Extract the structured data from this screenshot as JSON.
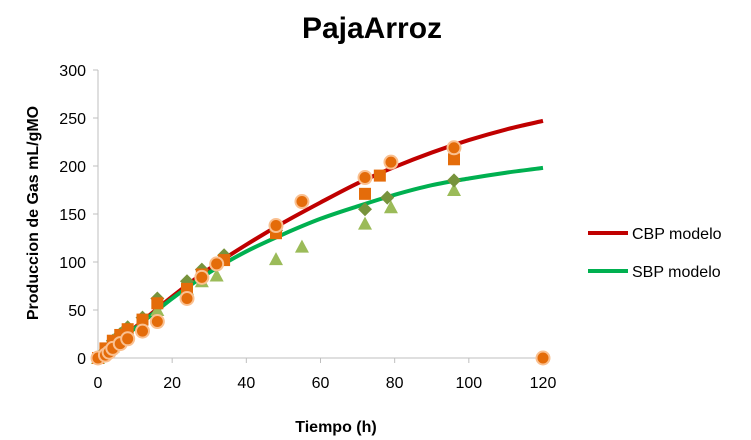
{
  "chart_data": {
    "type": "scatter",
    "title": "PajaArroz",
    "xlabel": "Tiempo (h)",
    "ylabel": "Produccion de Gas mL/gMO",
    "xlim": [
      0,
      120
    ],
    "ylim": [
      0,
      300
    ],
    "xticks": [
      0,
      20,
      40,
      60,
      80,
      100,
      120
    ],
    "yticks": [
      0,
      50,
      100,
      150,
      200,
      250,
      300
    ],
    "grid": false,
    "legend_position": "right",
    "series": [
      {
        "name": "CBP modelo",
        "kind": "line",
        "color": "#c00000",
        "x": [
          0,
          10,
          20,
          30,
          40,
          50,
          60,
          70,
          80,
          90,
          100,
          110,
          120
        ],
        "y": [
          0,
          32,
          64,
          93,
          118,
          141,
          162,
          182,
          199,
          214,
          227,
          238,
          247
        ]
      },
      {
        "name": "SBP modelo",
        "kind": "line",
        "color": "#00b050",
        "x": [
          0,
          10,
          20,
          30,
          40,
          50,
          60,
          70,
          80,
          90,
          100,
          110,
          120
        ],
        "y": [
          0,
          31,
          62,
          89,
          111,
          129,
          145,
          158,
          170,
          180,
          187,
          193,
          198
        ]
      },
      {
        "kind": "marker",
        "marker": "triangle",
        "color": "#9bbb59",
        "x": [
          0,
          2,
          4,
          6,
          8,
          12,
          16,
          24,
          28,
          32,
          48,
          55,
          72,
          79,
          96
        ],
        "y": [
          0,
          6,
          12,
          20,
          26,
          35,
          50,
          72,
          80,
          86,
          103,
          116,
          140,
          157,
          175
        ]
      },
      {
        "kind": "marker",
        "marker": "diamond",
        "color": "#77933c",
        "x": [
          0,
          2,
          4,
          6,
          8,
          12,
          16,
          24,
          28,
          34,
          48,
          72,
          78,
          96
        ],
        "y": [
          0,
          8,
          18,
          25,
          32,
          42,
          62,
          80,
          92,
          107,
          133,
          155,
          167,
          185
        ]
      },
      {
        "kind": "marker",
        "marker": "square",
        "color": "#e46c0a",
        "x": [
          0,
          2,
          4,
          6,
          8,
          12,
          16,
          24,
          28,
          34,
          48,
          72,
          76,
          96
        ],
        "y": [
          0,
          10,
          18,
          24,
          30,
          40,
          57,
          72,
          87,
          102,
          130,
          171,
          190,
          207
        ]
      },
      {
        "kind": "marker",
        "marker": "circle",
        "color": "#e46c0a",
        "stroke": "#fac090",
        "x": [
          0,
          2,
          3,
          4,
          6,
          8,
          12,
          16,
          24,
          28,
          32,
          48,
          55,
          72,
          79,
          96,
          120
        ],
        "y": [
          0,
          3,
          6,
          10,
          15,
          20,
          28,
          38,
          62,
          84,
          98,
          138,
          163,
          188,
          204,
          219,
          0
        ]
      }
    ]
  }
}
